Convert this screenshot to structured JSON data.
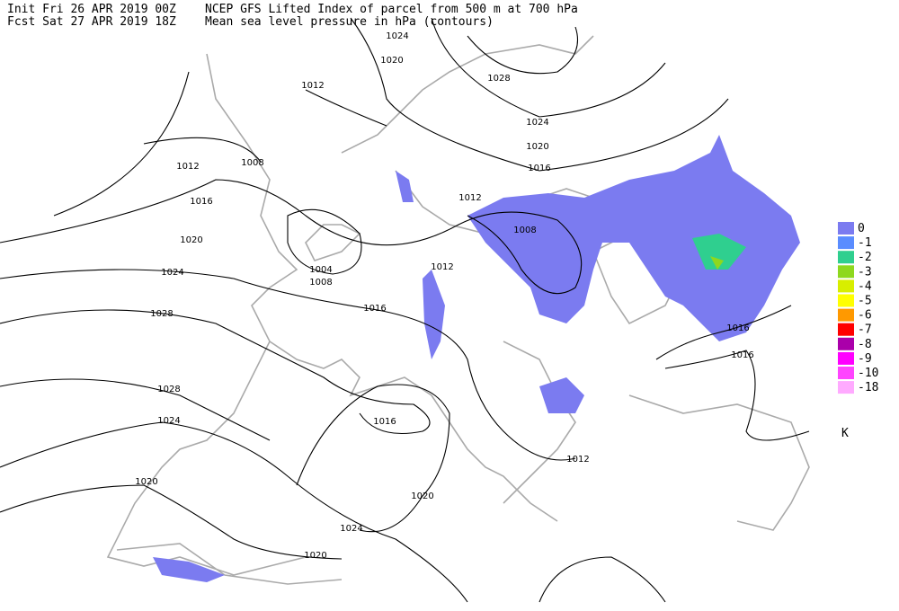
{
  "header": {
    "init": "Init  Fri 26 APR 2019 00Z",
    "fcst": "Fcst Sat 27 APR 2019 18Z",
    "title": "NCEP GFS Lifted Index of parcel from 500 m at 700 hPa",
    "subtitle": "Mean sea level pressure in hPa (contours)"
  },
  "contour_labels": [
    "1024",
    "1020",
    "1028",
    "1012",
    "1024",
    "1020",
    "1016",
    "1008",
    "1012",
    "1012",
    "1016",
    "1008",
    "1020",
    "1004",
    "1012",
    "1024",
    "1008",
    "1016",
    "1028",
    "1016",
    "1016",
    "1028",
    "1016",
    "1024",
    "1012",
    "1020",
    "1020",
    "1024",
    "1020"
  ],
  "legend": {
    "unit": "K",
    "items": [
      {
        "label": "0",
        "color": "#7b7bf0"
      },
      {
        "label": "-1",
        "color": "#5a8cff"
      },
      {
        "label": "-2",
        "color": "#2fcf8f"
      },
      {
        "label": "-3",
        "color": "#8ed81e"
      },
      {
        "label": "-4",
        "color": "#d8ee00"
      },
      {
        "label": "-5",
        "color": "#ffff00"
      },
      {
        "label": "-6",
        "color": "#ff9900"
      },
      {
        "label": "-7",
        "color": "#ff0000"
      },
      {
        "label": "-8",
        "color": "#aa00aa"
      },
      {
        "label": "-9",
        "color": "#ff00ff"
      },
      {
        "label": "-10",
        "color": "#ff44ff"
      },
      {
        "label": "-18",
        "color": "#ffaaff"
      }
    ]
  }
}
